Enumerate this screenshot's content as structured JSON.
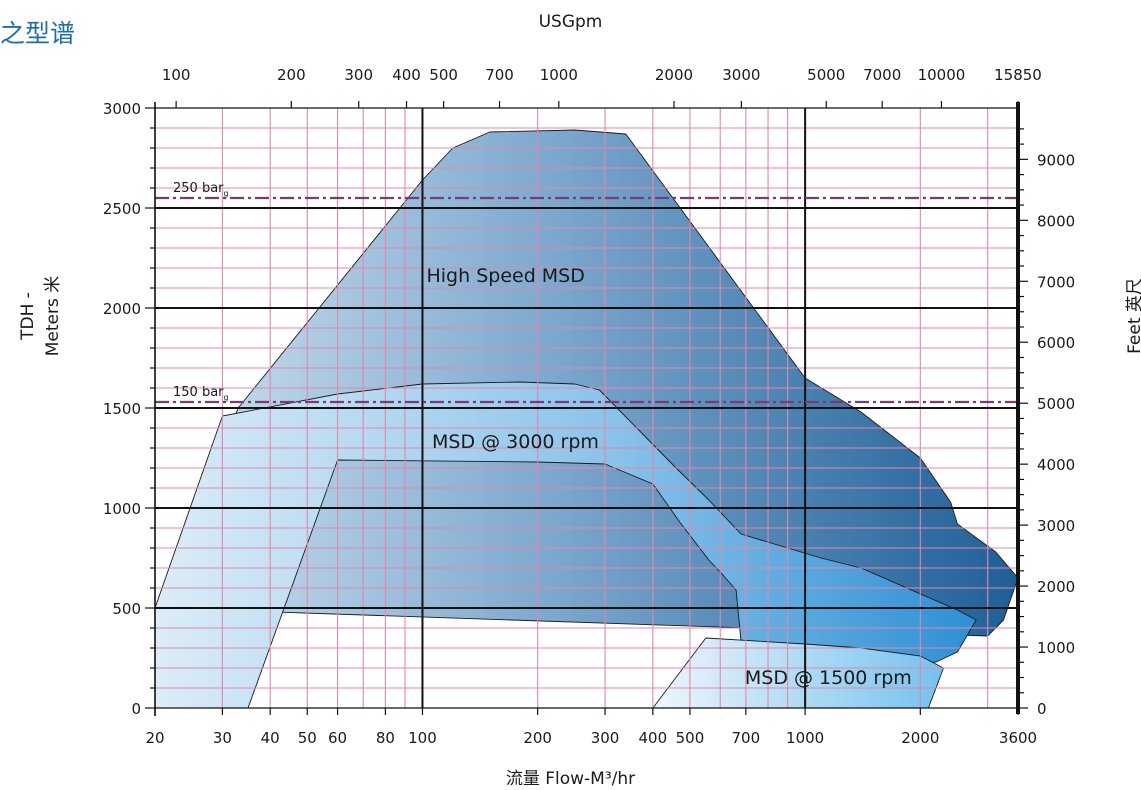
{
  "page": {
    "title": "之型谱"
  },
  "chart_data": {
    "type": "area",
    "x_scale": "log",
    "x_label": "流量 Flow-M³/hr",
    "x_ticks": [
      20,
      30,
      40,
      50,
      60,
      80,
      100,
      200,
      300,
      400,
      500,
      700,
      1000,
      2000,
      3600
    ],
    "x_range": [
      20,
      3600
    ],
    "y_label": "TDH - Meters 米",
    "y_ticks": [
      0,
      500,
      1000,
      1500,
      2000,
      2500,
      3000
    ],
    "y_range": [
      0,
      3000
    ],
    "top_axis_label": "USGpm",
    "top_ticks": [
      100,
      200,
      300,
      400,
      500,
      700,
      1000,
      2000,
      3000,
      5000,
      7000,
      10000,
      15850
    ],
    "right_axis_label": "Feet 英尺",
    "right_ticks": [
      0,
      1000,
      2000,
      3000,
      4000,
      5000,
      6000,
      7000,
      8000,
      9000
    ],
    "reference_lines": [
      {
        "label": "250 bar",
        "sub": "g",
        "y": 2550
      },
      {
        "label": "150 bar",
        "sub": "g",
        "y": 1530
      }
    ],
    "regions": [
      {
        "name": "High  Speed MSD",
        "label_at": {
          "x": 165,
          "y": 2130
        },
        "points": [
          [
            20,
            500
          ],
          [
            33,
            1500
          ],
          [
            100,
            2640
          ],
          [
            120,
            2800
          ],
          [
            150,
            2880
          ],
          [
            250,
            2890
          ],
          [
            340,
            2870
          ],
          [
            1000,
            1650
          ],
          [
            1400,
            1480
          ],
          [
            2000,
            1250
          ],
          [
            2400,
            1030
          ],
          [
            2500,
            920
          ],
          [
            3150,
            780
          ],
          [
            3600,
            650
          ],
          [
            3300,
            440
          ],
          [
            3000,
            360
          ]
        ]
      },
      {
        "name": "MSD @ 3000 rpm",
        "label_at": {
          "x": 175,
          "y": 1300
        },
        "points": [
          [
            20,
            500
          ],
          [
            30,
            1460
          ],
          [
            60,
            1570
          ],
          [
            100,
            1620
          ],
          [
            180,
            1630
          ],
          [
            250,
            1620
          ],
          [
            290,
            1590
          ],
          [
            460,
            1200
          ],
          [
            560,
            1040
          ],
          [
            680,
            870
          ],
          [
            1100,
            750
          ],
          [
            1400,
            700
          ],
          [
            2500,
            490
          ],
          [
            2800,
            440
          ],
          [
            2500,
            280
          ],
          [
            2200,
            230
          ],
          [
            1300,
            220
          ],
          [
            900,
            110
          ],
          [
            700,
            80
          ],
          [
            660,
            590
          ],
          [
            600,
            680
          ],
          [
            560,
            740
          ],
          [
            470,
            930
          ],
          [
            400,
            1120
          ],
          [
            300,
            1220
          ],
          [
            200,
            1230
          ],
          [
            60,
            1240
          ],
          [
            35,
            0
          ],
          [
            20,
            0
          ]
        ]
      },
      {
        "name": "MSD @ 1500 rpm",
        "label_at": {
          "x": 1150,
          "y": 120
        },
        "points": [
          [
            400,
            0
          ],
          [
            550,
            350
          ],
          [
            1000,
            320
          ],
          [
            1400,
            300
          ],
          [
            2000,
            260
          ],
          [
            2300,
            200
          ],
          [
            2100,
            0
          ]
        ]
      }
    ]
  }
}
